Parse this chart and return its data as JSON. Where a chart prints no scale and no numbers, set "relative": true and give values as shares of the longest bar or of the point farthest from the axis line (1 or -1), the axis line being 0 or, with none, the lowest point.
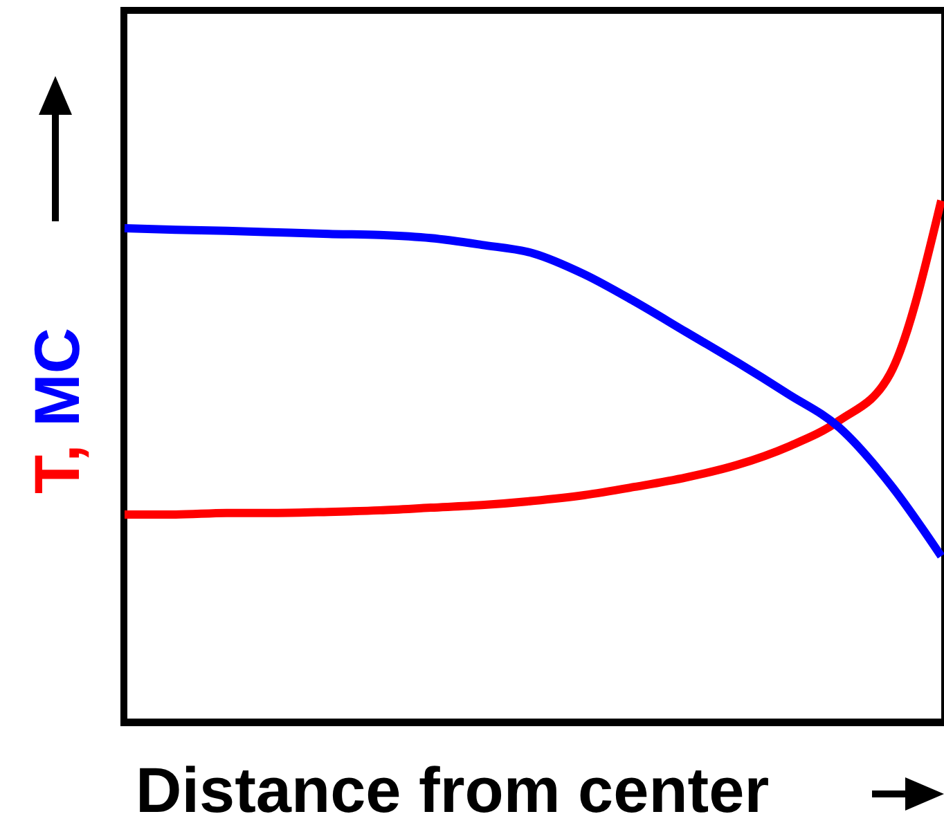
{
  "chart_data": {
    "type": "line",
    "relative": true,
    "xlabel": "Distance from center",
    "ylabel": "T, MC",
    "categories": [
      null,
      null,
      null,
      null,
      null,
      null,
      null,
      null,
      null,
      null,
      null,
      null,
      null,
      null,
      null,
      null,
      null
    ],
    "marker": "none",
    "line_style": "solid",
    "grid": false,
    "series": [
      {
        "color": "#ff0000",
        "values": [
          0.398,
          0.398,
          0.401,
          0.401,
          0.403,
          0.406,
          0.411,
          0.416,
          0.424,
          0.435,
          0.451,
          0.469,
          0.493,
          0.528,
          0.578,
          0.668,
          1
        ]
      },
      {
        "color": "#0000ff",
        "values": [
          0.947,
          0.944,
          0.942,
          0.939,
          0.936,
          0.934,
          0.928,
          0.915,
          0.899,
          0.859,
          0.806,
          0.748,
          0.69,
          0.629,
          0.565,
          0.456,
          0.318
        ]
      }
    ]
  }
}
